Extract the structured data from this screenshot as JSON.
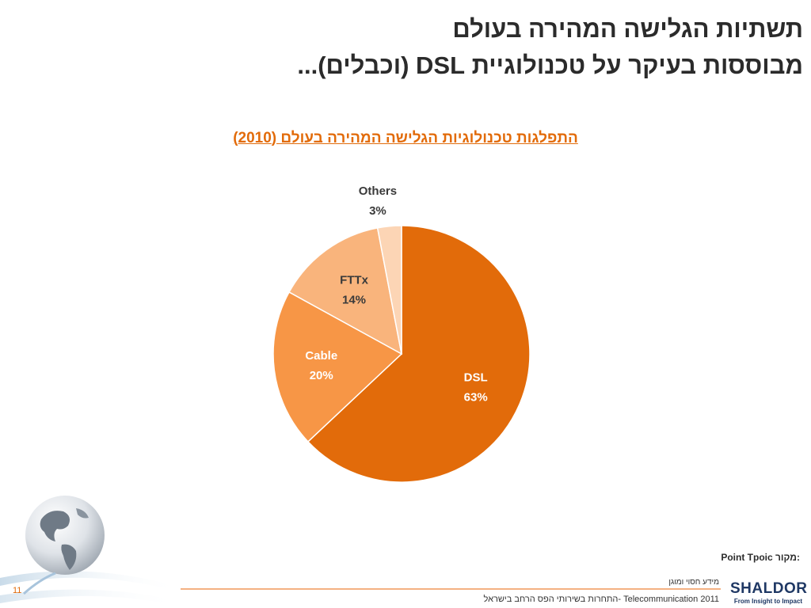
{
  "slide": {
    "title_line1": "תשתיות הגלישה המהירה בעולם",
    "title_line2": "מבוססות בעיקר על טכנולוגיית DSL (וכבלים)..."
  },
  "chart_data": {
    "type": "pie",
    "title": "התפלגות טכנולוגיות הגלישה המהירה בעולם (2010)",
    "slices": [
      {
        "label": "DSL",
        "value": 63,
        "display": "63%",
        "color": "#e26b0a",
        "label_color": "#ffffff"
      },
      {
        "label": "Cable",
        "value": 20,
        "display": "20%",
        "color": "#f79646",
        "label_color": "#ffffff"
      },
      {
        "label": "FTTx",
        "value": 14,
        "display": "14%",
        "color": "#f9b47c",
        "label_color": "#3a3a3a"
      },
      {
        "label": "Others",
        "value": 3,
        "display": "3%",
        "color": "#fcd5b5",
        "label_color": "#3a3a3a"
      }
    ],
    "start": "12 o'clock",
    "direction": "clockwise",
    "labels": "inside"
  },
  "source": {
    "label": "מקור:",
    "value": "Point Tpoic"
  },
  "footer": {
    "confidential": "מידע חסוי ומוגן",
    "text": "התחרות בשירותי הפס הרחב בישראל- Telecommunication 2011",
    "page_number": "11"
  },
  "logo": {
    "name": "SHALDOR",
    "tagline": "From Insight to Impact"
  },
  "colors": {
    "accent": "#e26b0a",
    "title_text": "#2b2b2b",
    "logo": "#1f3864"
  }
}
